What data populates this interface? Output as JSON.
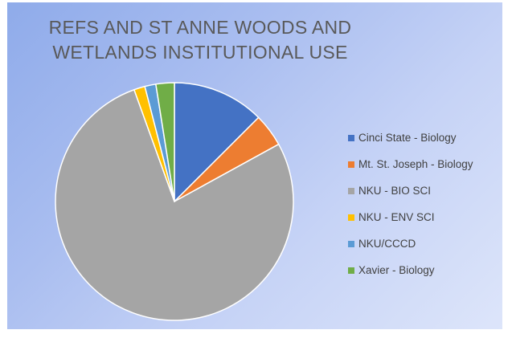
{
  "chart_data": {
    "type": "pie",
    "title": "REFS AND ST ANNE WOODS AND WETLANDS INSTITUTIONAL USE",
    "title_lines": [
      "REFS AND ST ANNE WOODS AND",
      "WETLANDS INSTITUTIONAL USE"
    ],
    "categories": [
      "Cinci State - Biology",
      "Mt. St. Joseph - Biology",
      "NKU - BIO SCI",
      "NKU - ENV SCI",
      "NKU/CCCD",
      "Xavier - Biology"
    ],
    "values": [
      12.5,
      4.5,
      77.5,
      1.5,
      1.5,
      2.5
    ],
    "colors": [
      "#4472c4",
      "#ed7d31",
      "#a5a5a5",
      "#ffc000",
      "#5b9bd5",
      "#70ad47"
    ],
    "start_angle_deg": 0,
    "direction": "clockwise",
    "legend_position": "right"
  }
}
